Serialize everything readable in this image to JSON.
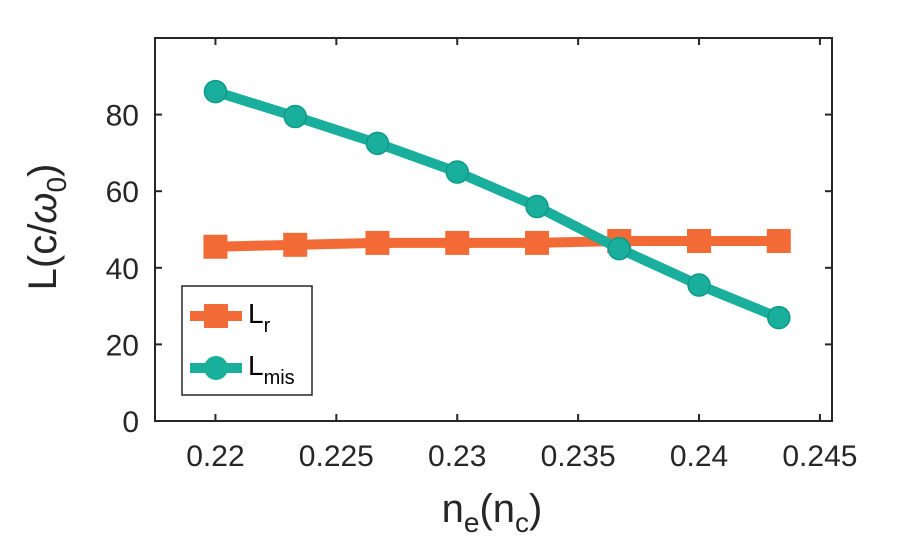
{
  "chart_data": {
    "type": "line",
    "title": "",
    "xlabel": {
      "base": "n",
      "sub": "e",
      "mid": "(n",
      "sub2": "c",
      "end": ")"
    },
    "ylabel": {
      "pre": "L(c/",
      "omega": "ω",
      "sub": "0",
      "post": ")"
    },
    "xlim": [
      0.2175,
      0.2455
    ],
    "ylim": [
      0,
      100
    ],
    "x_ticks": [
      0.22,
      0.225,
      0.23,
      0.235,
      0.24,
      0.245
    ],
    "x_tick_labels": [
      "0.22",
      "0.225",
      "0.23",
      "0.235",
      "0.24",
      "0.245"
    ],
    "y_ticks": [
      0,
      20,
      40,
      60,
      80
    ],
    "y_tick_labels": [
      "0",
      "20",
      "40",
      "60",
      "80"
    ],
    "grid": false,
    "legend_position": "lower-left",
    "x": [
      0.22,
      0.2233,
      0.2267,
      0.23,
      0.2333,
      0.2367,
      0.24,
      0.2433
    ],
    "series": [
      {
        "name": "L_r",
        "legend_base": "L",
        "legend_sub": "r",
        "marker": "square",
        "color": "#F26B36",
        "values": [
          45.5,
          46.0,
          46.5,
          46.5,
          46.5,
          47.0,
          47.0,
          47.0
        ]
      },
      {
        "name": "L_mis",
        "legend_base": "L",
        "legend_sub": "mis",
        "marker": "circle",
        "color": "#1AAE9C",
        "values": [
          86.0,
          79.5,
          72.5,
          65.0,
          56.0,
          45.0,
          35.5,
          27.0
        ]
      }
    ]
  }
}
